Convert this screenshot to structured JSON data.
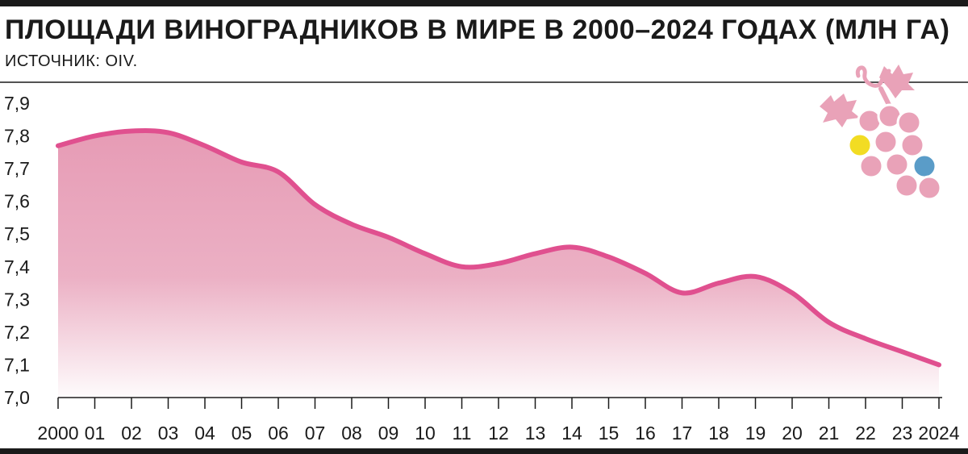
{
  "header": {
    "title": "ПЛОЩАДИ ВИНОГРАДНИКОВ В МИРЕ В 2000–2024 ГОДАХ (МЛН ГА)",
    "source": "ИСТОЧНИК: OIV."
  },
  "colors": {
    "line": "#e0508f",
    "area": "#e596b1",
    "grape_pink": "#e9a2b8",
    "grape_yellow": "#f2dc23",
    "grape_blue": "#5a9cc8",
    "text": "#1a1a1a"
  },
  "illustration": {
    "icon": "grape-bunch-icon"
  },
  "chart_data": {
    "type": "area",
    "title": "ПЛОЩАДИ ВИНОГРАДНИКОВ В МИРЕ В 2000–2024 ГОДАХ (МЛН ГА)",
    "x": [
      2000,
      2001,
      2002,
      2003,
      2004,
      2005,
      2006,
      2007,
      2008,
      2009,
      2010,
      2011,
      2012,
      2013,
      2014,
      2015,
      2016,
      2017,
      2018,
      2019,
      2020,
      2021,
      2022,
      2023,
      2024
    ],
    "x_tick_labels": [
      "2000",
      "01",
      "02",
      "03",
      "04",
      "05",
      "06",
      "07",
      "08",
      "09",
      "10",
      "11",
      "12",
      "13",
      "14",
      "15",
      "16",
      "17",
      "18",
      "19",
      "20",
      "21",
      "22",
      "23",
      "2024"
    ],
    "series": [
      {
        "values": [
          7.77,
          7.8,
          7.815,
          7.81,
          7.77,
          7.72,
          7.69,
          7.59,
          7.53,
          7.49,
          7.44,
          7.4,
          7.41,
          7.44,
          7.46,
          7.43,
          7.38,
          7.32,
          7.35,
          7.37,
          7.32,
          7.23,
          7.18,
          7.14,
          7.1
        ]
      }
    ],
    "ylim": [
      7.0,
      7.9
    ],
    "y_ticks": [
      "7,0",
      "7,1",
      "7,2",
      "7,3",
      "7,4",
      "7,5",
      "7,6",
      "7,7",
      "7,8",
      "7,9"
    ],
    "grid": false,
    "legend": "none"
  }
}
